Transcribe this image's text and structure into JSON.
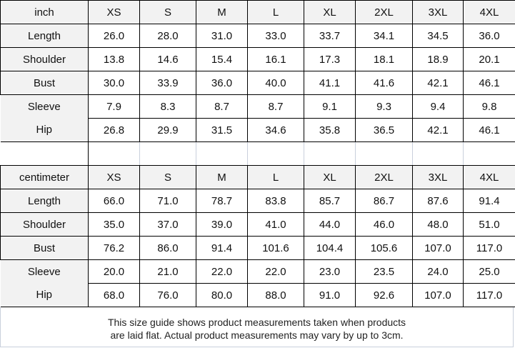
{
  "sizes": [
    "XS",
    "S",
    "M",
    "L",
    "XL",
    "2XL",
    "3XL",
    "4XL"
  ],
  "inch": {
    "unit": "inch",
    "rows": [
      {
        "label": "Length",
        "values": [
          "26.0",
          "28.0",
          "31.0",
          "33.0",
          "33.7",
          "34.1",
          "34.5",
          "36.0"
        ]
      },
      {
        "label": "Shoulder",
        "values": [
          "13.8",
          "14.6",
          "15.4",
          "16.1",
          "17.3",
          "18.1",
          "18.9",
          "20.1"
        ]
      },
      {
        "label": "Bust",
        "values": [
          "30.0",
          "33.9",
          "36.0",
          "40.0",
          "41.1",
          "41.6",
          "42.1",
          "46.1"
        ]
      },
      {
        "label": "Sleeve",
        "values": [
          "7.9",
          "8.3",
          "8.7",
          "8.7",
          "9.1",
          "9.3",
          "9.4",
          "9.8"
        ]
      },
      {
        "label": "Hip",
        "values": [
          "26.8",
          "29.9",
          "31.5",
          "34.6",
          "35.8",
          "36.5",
          "42.1",
          "46.1"
        ]
      }
    ]
  },
  "cm": {
    "unit": "centimeter",
    "rows": [
      {
        "label": "Length",
        "values": [
          "66.0",
          "71.0",
          "78.7",
          "83.8",
          "85.7",
          "86.7",
          "87.6",
          "91.4"
        ]
      },
      {
        "label": "Shoulder",
        "values": [
          "35.0",
          "37.0",
          "39.0",
          "41.0",
          "44.0",
          "46.0",
          "48.0",
          "51.0"
        ]
      },
      {
        "label": "Bust",
        "values": [
          "76.2",
          "86.0",
          "91.4",
          "101.6",
          "104.4",
          "105.6",
          "107.0",
          "117.0"
        ]
      },
      {
        "label": "Sleeve",
        "values": [
          "20.0",
          "21.0",
          "22.0",
          "22.0",
          "23.0",
          "23.5",
          "24.0",
          "25.0"
        ]
      },
      {
        "label": "Hip",
        "values": [
          "68.0",
          "76.0",
          "80.0",
          "88.0",
          "91.0",
          "92.6",
          "107.0",
          "117.0"
        ]
      }
    ]
  },
  "footer": {
    "line1": "This size guide shows product measurements taken when products",
    "line2": "are laid flat. Actual product measurements may vary by up to 3cm."
  }
}
